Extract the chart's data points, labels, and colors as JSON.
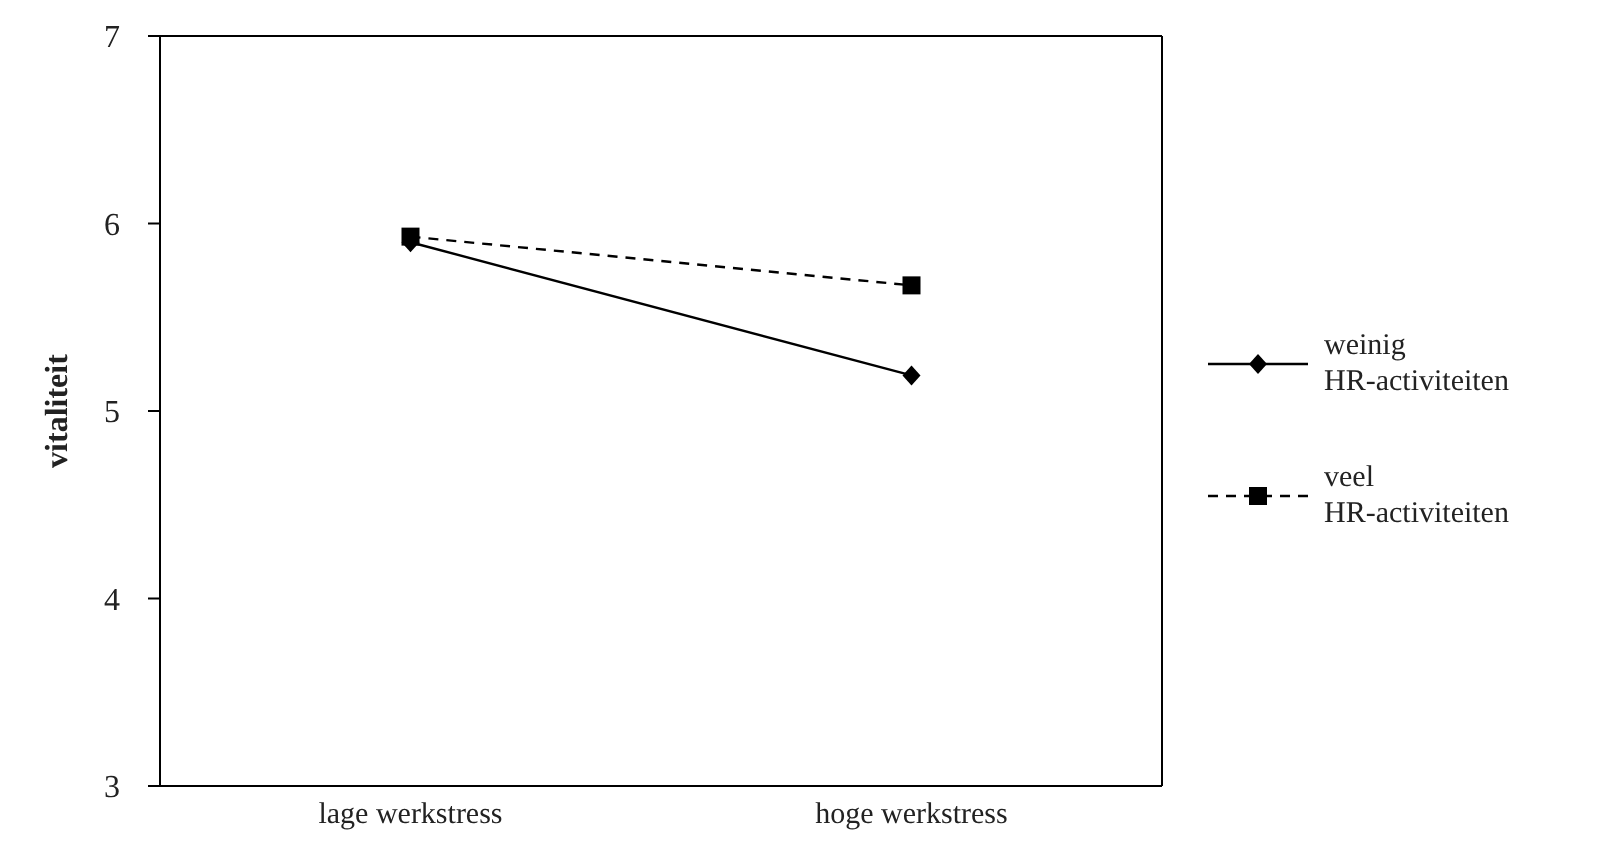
{
  "chart_data": {
    "type": "line",
    "ylabel": "vitaliteit",
    "categories": [
      "lage werkstress",
      "hoge werkstress"
    ],
    "series": [
      {
        "name": "weinig HR-activiteiten",
        "color": "#000000",
        "values": [
          5.9,
          5.19
        ],
        "marker": "diamond",
        "line_style": "solid"
      },
      {
        "name": "veel HR-activiteiten",
        "color": "#000000",
        "values": [
          5.93,
          5.67
        ],
        "marker": "square",
        "line_style": "dashed"
      }
    ],
    "ylim": [
      3,
      7
    ],
    "yticks": [
      3,
      4,
      5,
      6,
      7
    ],
    "grid": false,
    "legend": "right"
  }
}
